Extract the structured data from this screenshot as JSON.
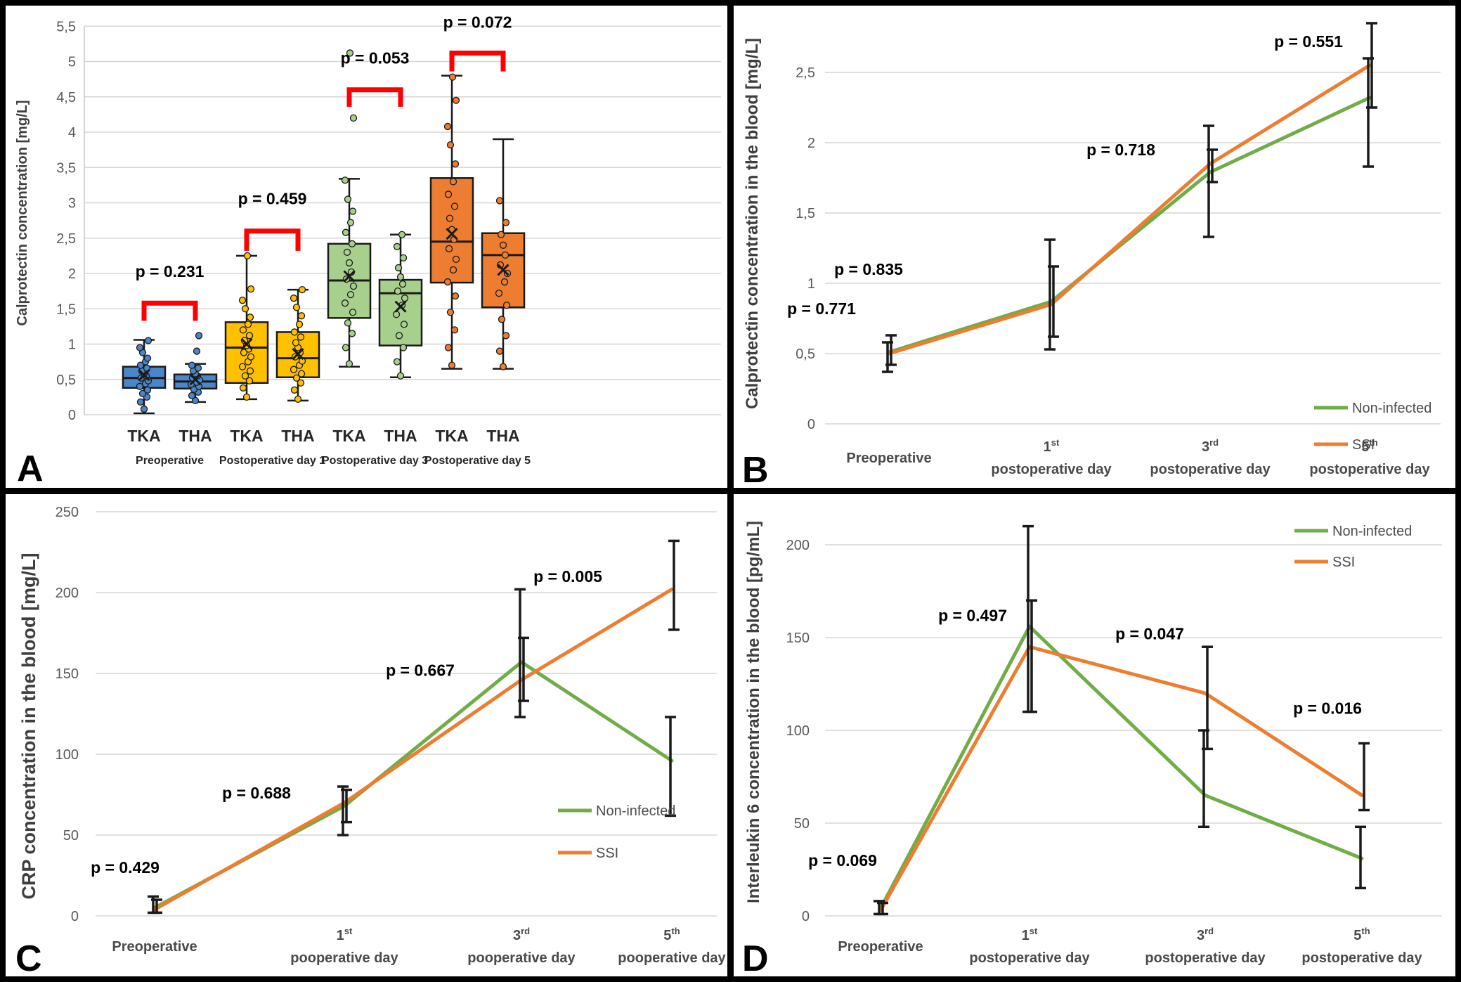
{
  "figure": {
    "background": "#ffffff",
    "frame_color": "#000000",
    "panel_letters": [
      "A",
      "B",
      "C",
      "D"
    ]
  },
  "colors": {
    "non_infected": "#70AD47",
    "ssi": "#ED7D31",
    "box_blue": "#4A86C8",
    "box_yellow": "#FFC000",
    "box_green": "#A8D08D",
    "box_orange": "#ED7D31",
    "bracket_red": "#FF0000",
    "grid": "#D6D6D6",
    "tick_text": "#595959",
    "label_text": "#3F3F3F",
    "ink": "#1A1A1A"
  },
  "chart_data": [
    {
      "id": "A",
      "type": "box",
      "panel_label": "A",
      "ylabel": "Calprotectin concentration [mg/L]",
      "ylim": [
        0,
        5.5
      ],
      "ytick_step": 0.5,
      "decimal_style": "comma",
      "grid": true,
      "group_labels": [
        "Preoperative",
        "Postoperative day 1",
        "Postoperative day 3",
        "Postoperative day 5"
      ],
      "boxes": [
        {
          "category": "TKA",
          "group": 0,
          "color_key": "box_blue",
          "whisker_low": 0.02,
          "q1": 0.38,
          "median": 0.52,
          "q3": 0.68,
          "whisker_high": 1.06,
          "mean": 0.56,
          "points": [
            0.08,
            0.18,
            0.25,
            0.3,
            0.35,
            0.4,
            0.44,
            0.48,
            0.52,
            0.55,
            0.58,
            0.62,
            0.66,
            0.7,
            0.75,
            0.8,
            0.88,
            0.95,
            1.05
          ]
        },
        {
          "category": "THA",
          "group": 0,
          "color_key": "box_blue",
          "whisker_low": 0.18,
          "q1": 0.37,
          "median": 0.47,
          "q3": 0.57,
          "whisker_high": 0.72,
          "mean": 0.5,
          "points": [
            0.2,
            0.27,
            0.32,
            0.36,
            0.4,
            0.43,
            0.46,
            0.49,
            0.52,
            0.55,
            0.58,
            0.62,
            0.66,
            0.7,
            0.9,
            1.12
          ]
        },
        {
          "category": "TKA",
          "group": 1,
          "color_key": "box_yellow",
          "whisker_low": 0.22,
          "q1": 0.45,
          "median": 0.95,
          "q3": 1.31,
          "whisker_high": 2.25,
          "mean": 1.0,
          "points": [
            0.25,
            0.38,
            0.48,
            0.55,
            0.62,
            0.68,
            0.75,
            0.82,
            0.88,
            0.93,
            0.98,
            1.05,
            1.12,
            1.2,
            1.28,
            1.38,
            1.5,
            1.62,
            1.78,
            2.25
          ]
        },
        {
          "category": "THA",
          "group": 1,
          "color_key": "box_yellow",
          "whisker_low": 0.2,
          "q1": 0.53,
          "median": 0.8,
          "q3": 1.17,
          "whisker_high": 1.77,
          "mean": 0.86,
          "points": [
            0.22,
            0.35,
            0.45,
            0.52,
            0.58,
            0.64,
            0.7,
            0.76,
            0.82,
            0.88,
            0.95,
            1.02,
            1.1,
            1.17,
            1.28,
            1.4,
            1.52,
            1.65,
            1.77
          ]
        },
        {
          "category": "TKA",
          "group": 2,
          "color_key": "box_green",
          "whisker_low": 0.68,
          "q1": 1.37,
          "median": 1.9,
          "q3": 2.42,
          "whisker_high": 3.34,
          "mean": 1.96,
          "points": [
            0.72,
            0.95,
            1.15,
            1.3,
            1.45,
            1.58,
            1.7,
            1.82,
            1.92,
            2.02,
            2.15,
            2.3,
            2.42,
            2.58,
            2.72,
            2.88,
            3.05,
            3.32,
            4.2,
            5.12
          ]
        },
        {
          "category": "THA",
          "group": 2,
          "color_key": "box_green",
          "whisker_low": 0.53,
          "q1": 0.98,
          "median": 1.72,
          "q3": 1.91,
          "whisker_high": 2.55,
          "mean": 1.53,
          "points": [
            0.55,
            0.75,
            0.95,
            1.12,
            1.28,
            1.42,
            1.55,
            1.65,
            1.75,
            1.85,
            1.95,
            2.08,
            2.22,
            2.38,
            2.55
          ]
        },
        {
          "category": "TKA",
          "group": 3,
          "color_key": "box_orange",
          "whisker_low": 0.65,
          "q1": 1.87,
          "median": 2.45,
          "q3": 3.35,
          "whisker_high": 4.8,
          "mean": 2.56,
          "points": [
            0.7,
            0.95,
            1.2,
            1.45,
            1.68,
            1.88,
            2.05,
            2.2,
            2.35,
            2.48,
            2.62,
            2.78,
            2.95,
            3.12,
            3.3,
            3.55,
            3.82,
            4.08,
            4.45,
            4.78
          ]
        },
        {
          "category": "THA",
          "group": 3,
          "color_key": "box_orange",
          "whisker_low": 0.65,
          "q1": 1.52,
          "median": 2.26,
          "q3": 2.57,
          "whisker_high": 3.9,
          "mean": 2.05,
          "points": [
            0.68,
            0.9,
            1.12,
            1.35,
            1.55,
            1.72,
            1.88,
            2.0,
            2.12,
            2.26,
            2.4,
            2.55,
            2.72,
            3.03
          ]
        }
      ],
      "p_brackets": [
        {
          "label": "p = 0.231",
          "left_box": 0,
          "right_box": 1,
          "bar_value": 1.58,
          "leg_drop": 0.25,
          "text_value": 1.95
        },
        {
          "label": "p = 0.459",
          "left_box": 2,
          "right_box": 3,
          "bar_value": 2.6,
          "leg_drop": 0.28,
          "text_value": 2.98
        },
        {
          "label": "p = 0.053",
          "left_box": 4,
          "right_box": 5,
          "bar_value": 4.6,
          "leg_drop": 0.24,
          "text_value": 4.97
        },
        {
          "label": "p = 0.072",
          "left_box": 6,
          "right_box": 7,
          "bar_value": 5.12,
          "leg_drop": 0.26,
          "text_value": 5.48
        }
      ]
    },
    {
      "id": "B",
      "type": "line",
      "panel_label": "B",
      "ylabel": "Calprotectin concentration in the blood [mg/L]",
      "ylim": [
        0,
        2.5
      ],
      "ytick_step": 0.5,
      "decimal_style": "comma",
      "categories": [
        {
          "top": "Preoperative"
        },
        {
          "top": "1",
          "sup": "st",
          "bottom": "postoperative day"
        },
        {
          "top": "3",
          "sup": "rd",
          "bottom": "postoperative day"
        },
        {
          "top": "5",
          "sup": "th",
          "bottom": "postoperative day"
        }
      ],
      "series": [
        {
          "name": "Non-infected",
          "color_key": "non_infected",
          "values": [
            0.51,
            0.87,
            1.79,
            2.32
          ],
          "errors": [
            [
              0.37,
              0.58
            ],
            [
              0.53,
              1.31
            ],
            [
              1.33,
              2.12
            ],
            [
              1.83,
              2.6
            ]
          ]
        },
        {
          "name": "SSI",
          "color_key": "ssi",
          "values": [
            0.5,
            0.85,
            1.85,
            2.55
          ],
          "errors": [
            [
              0.42,
              0.63
            ],
            [
              0.62,
              1.12
            ],
            [
              1.72,
              1.95
            ],
            [
              2.25,
              2.85
            ]
          ]
        }
      ],
      "p_labels": [
        {
          "label": "p = 0.771",
          "x": 0,
          "value": 0.82,
          "dx": -96
        },
        {
          "label": "p = 0.835",
          "x": 1,
          "value": 1.1,
          "dx": -260
        },
        {
          "label": "p = 0.718",
          "x": 2,
          "value": 1.95,
          "dx": -127
        },
        {
          "label": "p = 0.551",
          "x": 3,
          "value": 2.72,
          "dx": -87
        }
      ],
      "legend": {
        "position": "lower-right",
        "items": [
          "Non-infected",
          "SSI"
        ]
      }
    },
    {
      "id": "C",
      "type": "line",
      "panel_label": "C",
      "ylabel": "CRP concentration in the blood  [mg/L]",
      "ylim": [
        0,
        250
      ],
      "ytick_step": 50,
      "decimal_style": "plain",
      "categories": [
        {
          "top": "Preoperative"
        },
        {
          "top": "1",
          "sup": "st",
          "bottom": "pooperative day"
        },
        {
          "top": "3",
          "rd": "",
          "sup": "rd",
          "bottom": "pooperative day"
        },
        {
          "top": "5",
          "sup": "th",
          "bottom": "pooperative day"
        }
      ],
      "series": [
        {
          "name": "Non-infected",
          "color_key": "non_infected",
          "values": [
            5,
            68,
            157,
            96
          ],
          "errors": [
            [
              2,
              12
            ],
            [
              50,
              80
            ],
            [
              123,
              202
            ],
            [
              62,
              123
            ]
          ]
        },
        {
          "name": "SSI",
          "color_key": "ssi",
          "values": [
            4,
            70,
            146,
            202
          ],
          "errors": [
            [
              2,
              10
            ],
            [
              58,
              78
            ],
            [
              133,
              172
            ],
            [
              177,
              232
            ]
          ]
        }
      ],
      "p_labels": [
        {
          "label": "p = 0.429",
          "x": 0,
          "value": 30,
          "dx": -42
        },
        {
          "label": "p = 0.688",
          "x": 1,
          "value": 76,
          "dx": -125
        },
        {
          "label": "p = 0.667",
          "x": 2,
          "value": 152,
          "dx": -144
        },
        {
          "label": "p = 0.005",
          "x": 3,
          "value": 210,
          "dx": -148
        }
      ],
      "legend": {
        "position": "mid-right",
        "items": [
          "Non-infected",
          "SSI"
        ]
      }
    },
    {
      "id": "D",
      "type": "line",
      "panel_label": "D",
      "ylabel": "Interleukin 6 concentration in the blood [pg/mL]",
      "ylim": [
        0,
        200
      ],
      "ytick_step": 50,
      "decimal_style": "plain",
      "categories": [
        {
          "top": "Preoperative"
        },
        {
          "top": "1",
          "sup": "st",
          "bottom": "postoperative day"
        },
        {
          "top": "3",
          "sup": "rd",
          "bottom": "postoperative day"
        },
        {
          "top": "5",
          "sup": "th",
          "bottom": "postoperative day"
        }
      ],
      "series": [
        {
          "name": "Non-infected",
          "color_key": "non_infected",
          "values": [
            4,
            156,
            65,
            31
          ],
          "errors": [
            [
              1,
              8
            ],
            [
              110,
              210
            ],
            [
              48,
              100
            ],
            [
              15,
              48
            ]
          ]
        },
        {
          "name": "SSI",
          "color_key": "ssi",
          "values": [
            3,
            145,
            120,
            65
          ],
          "errors": [
            [
              1,
              7
            ],
            [
              110,
              170
            ],
            [
              90,
              145
            ],
            [
              57,
              93
            ]
          ]
        }
      ],
      "p_labels": [
        {
          "label": "p = 0.069",
          "x": 0,
          "value": 30,
          "dx": -54
        },
        {
          "label": "p = 0.497",
          "x": 1,
          "value": 162,
          "dx": -81
        },
        {
          "label": "p = 0.047",
          "x": 2,
          "value": 152,
          "dx": -79
        },
        {
          "label": "p = 0.016",
          "x": 3,
          "value": 112,
          "dx": -49
        }
      ],
      "legend": {
        "position": "upper-right",
        "items": [
          "Non-infected",
          "SSI"
        ]
      }
    }
  ]
}
